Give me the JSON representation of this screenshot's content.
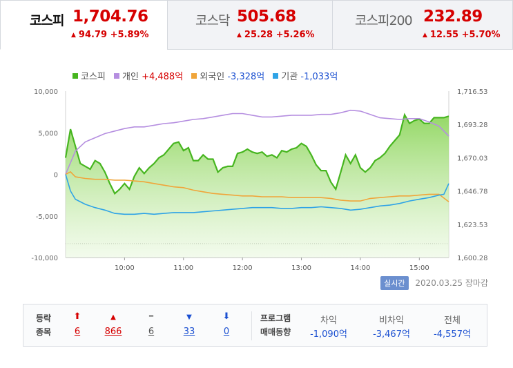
{
  "tabs": [
    {
      "name": "코스피",
      "price": "1,704.76",
      "change": "94.79 +5.89%"
    },
    {
      "name": "코스닥",
      "price": "505.68",
      "change": "25.28 +5.26%"
    },
    {
      "name": "코스피200",
      "price": "232.89",
      "change": "12.55 +5.70%"
    }
  ],
  "legend": {
    "kospi": "코스피",
    "individual": "개인",
    "individual_value": "+4,488억",
    "foreign": "외국인",
    "foreign_value": "-3,328억",
    "institution": "기관",
    "institution_value": "-1,033억"
  },
  "colors": {
    "kospi": "#46b51f",
    "individual": "#b58ee0",
    "foreign": "#f0a53a",
    "institution": "#2ea3e6",
    "up": "#d60000",
    "down": "#1a4fd1"
  },
  "chart_data": {
    "type": "line",
    "x_ticks": [
      "10:00",
      "11:00",
      "12:00",
      "13:00",
      "14:00",
      "15:00"
    ],
    "x_range": [
      "09:00",
      "15:30"
    ],
    "y_left_ticks": [
      "10,000",
      "5,000",
      "0",
      "-5,000",
      "-10,000"
    ],
    "y_left_range": [
      -10000,
      10000
    ],
    "y_right_ticks": [
      "1,716.53",
      "1,693.28",
      "1,670.03",
      "1,646.78",
      "1,623.53",
      "1,600.28"
    ],
    "y_right_range": [
      1600.28,
      1716.53
    ],
    "previous_close": 1609.97,
    "series": [
      {
        "name": "코스피",
        "axis": "right",
        "type": "area",
        "x": [
          0,
          5,
          15,
          25,
          30,
          35,
          40,
          45,
          50,
          55,
          60,
          65,
          70,
          75,
          80,
          85,
          90,
          95,
          100,
          105,
          110,
          115,
          120,
          125,
          130,
          135,
          140,
          145,
          150,
          155,
          160,
          165,
          170,
          175,
          180,
          185,
          190,
          195,
          200,
          205,
          210,
          215,
          220,
          225,
          230,
          235,
          240,
          245,
          250,
          255,
          260,
          265,
          270,
          275,
          280,
          285,
          290,
          295,
          300,
          305,
          310,
          315,
          320,
          325,
          330,
          335,
          340,
          345,
          350,
          355,
          360,
          365,
          370,
          375,
          380,
          385,
          390
        ],
        "y": [
          1670.0,
          1690.0,
          1666.0,
          1662.0,
          1668.0,
          1666.0,
          1660.0,
          1652.0,
          1645.0,
          1648.0,
          1652.0,
          1648.0,
          1657.0,
          1663.0,
          1659.0,
          1663.0,
          1666.0,
          1670.0,
          1672.0,
          1676.0,
          1680.0,
          1681.0,
          1675.0,
          1677.0,
          1668.0,
          1668.0,
          1672.0,
          1669.0,
          1669.0,
          1660.0,
          1663.0,
          1664.0,
          1664.0,
          1673.0,
          1674.0,
          1676.0,
          1674.0,
          1673.0,
          1674.0,
          1671.0,
          1672.0,
          1670.0,
          1675.0,
          1674.0,
          1676.0,
          1677.0,
          1680.0,
          1678.0,
          1672.0,
          1665.0,
          1661.0,
          1661.0,
          1653.0,
          1648.0,
          1660.0,
          1672.0,
          1666.0,
          1672.0,
          1663.0,
          1660.0,
          1663.0,
          1668.0,
          1670.0,
          1673.0,
          1678.0,
          1682.0,
          1686.0,
          1700.0,
          1694.0,
          1696.0,
          1697.0,
          1694.0,
          1694.0,
          1698.0,
          1698.0,
          1698.0,
          1699.0
        ]
      },
      {
        "name": "개인",
        "axis": "left",
        "x": [
          0,
          10,
          20,
          30,
          40,
          50,
          60,
          70,
          80,
          90,
          100,
          110,
          120,
          130,
          140,
          150,
          160,
          170,
          180,
          190,
          200,
          210,
          220,
          230,
          240,
          250,
          260,
          270,
          280,
          290,
          300,
          310,
          320,
          330,
          340,
          350,
          360,
          370,
          380,
          390
        ],
        "y": [
          0,
          2800,
          3900,
          4400,
          4900,
          5200,
          5500,
          5700,
          5700,
          5900,
          6100,
          6200,
          6400,
          6600,
          6700,
          6900,
          7100,
          7300,
          7300,
          7100,
          6900,
          6900,
          7000,
          7100,
          7100,
          7100,
          7200,
          7200,
          7400,
          7700,
          7600,
          7200,
          6800,
          6700,
          6600,
          6700,
          6700,
          6300,
          5800,
          4600
        ]
      },
      {
        "name": "외국인",
        "axis": "left",
        "x": [
          0,
          5,
          10,
          20,
          30,
          40,
          50,
          60,
          70,
          80,
          90,
          100,
          110,
          120,
          130,
          140,
          150,
          160,
          170,
          180,
          190,
          200,
          210,
          220,
          230,
          240,
          250,
          260,
          270,
          280,
          290,
          300,
          310,
          320,
          330,
          340,
          350,
          360,
          370,
          380,
          390
        ],
        "y": [
          0,
          300,
          -300,
          -500,
          -600,
          -600,
          -700,
          -700,
          -800,
          -900,
          -1100,
          -1300,
          -1500,
          -1600,
          -1900,
          -2100,
          -2300,
          -2400,
          -2500,
          -2600,
          -2600,
          -2700,
          -2700,
          -2700,
          -2800,
          -2800,
          -2800,
          -2800,
          -2900,
          -3100,
          -3200,
          -3200,
          -2900,
          -2800,
          -2700,
          -2600,
          -2600,
          -2500,
          -2400,
          -2400,
          -3300
        ]
      },
      {
        "name": "기관",
        "axis": "left",
        "x": [
          0,
          5,
          10,
          20,
          30,
          40,
          50,
          60,
          70,
          80,
          90,
          100,
          110,
          120,
          130,
          140,
          150,
          160,
          170,
          180,
          190,
          200,
          210,
          220,
          230,
          240,
          250,
          260,
          270,
          280,
          290,
          300,
          310,
          320,
          330,
          340,
          350,
          360,
          370,
          380,
          385,
          390
        ],
        "y": [
          0,
          -2000,
          -3000,
          -3600,
          -4000,
          -4300,
          -4700,
          -4800,
          -4800,
          -4700,
          -4800,
          -4700,
          -4600,
          -4600,
          -4600,
          -4500,
          -4400,
          -4300,
          -4200,
          -4100,
          -4000,
          -4000,
          -4000,
          -4100,
          -4100,
          -4000,
          -4000,
          -3900,
          -4000,
          -4100,
          -4300,
          -4200,
          -4000,
          -3800,
          -3700,
          -3500,
          -3200,
          -3000,
          -2800,
          -2500,
          -2400,
          -1100
        ]
      }
    ]
  },
  "status": {
    "realtime_label": "실시간",
    "date": "2020.03.25",
    "session": "장마감"
  },
  "breadth": {
    "label_line1": "등락",
    "label_line2": "종목",
    "items": [
      {
        "icon": "arrow-up-bold-icon",
        "symbol": "⬆",
        "value": "6",
        "color": "red"
      },
      {
        "icon": "triangle-up-icon",
        "symbol": "▲",
        "value": "866",
        "color": "red"
      },
      {
        "icon": "dash-icon",
        "symbol": "━",
        "value": "6",
        "color": "gray"
      },
      {
        "icon": "triangle-down-icon",
        "symbol": "▼",
        "value": "33",
        "color": "blue"
      },
      {
        "icon": "arrow-down-bold-icon",
        "symbol": "⬇",
        "value": "0",
        "color": "blue"
      }
    ]
  },
  "program": {
    "label_line1": "프로그램",
    "label_line2": "매매동향",
    "columns": [
      {
        "header": "차익",
        "value": "-1,090억"
      },
      {
        "header": "비차익",
        "value": "-3,467억"
      },
      {
        "header": "전체",
        "value": "-4,557억"
      }
    ]
  }
}
